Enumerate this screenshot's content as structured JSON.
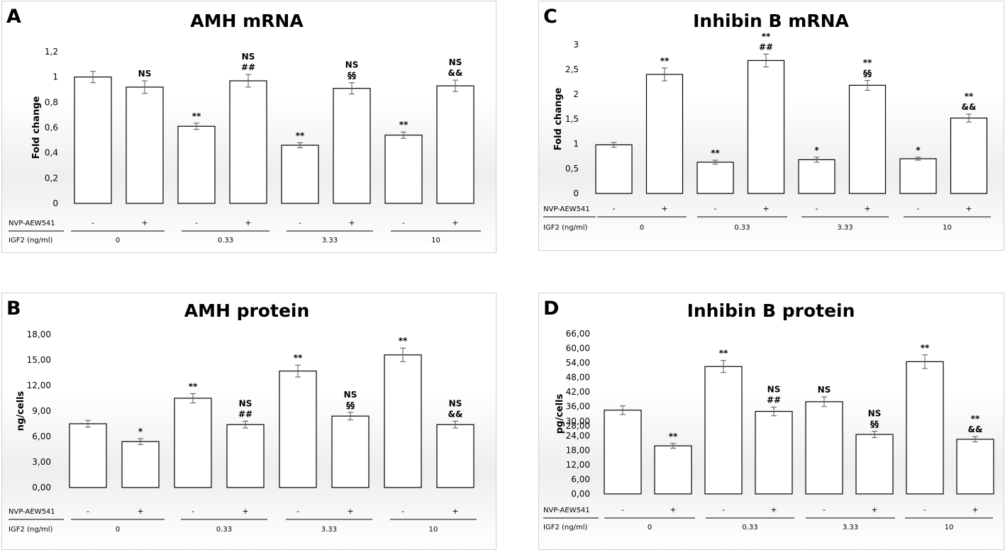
{
  "chart_data": [
    {
      "panel": "A",
      "type": "bar",
      "title": "AMH mRNA",
      "ylabel": "Fold change",
      "ylim": [
        0,
        1.2
      ],
      "yticks": [
        "0",
        "0,2",
        "0,4",
        "0,6",
        "0,8",
        "1",
        "1,2"
      ],
      "values": [
        1.0,
        0.92,
        0.61,
        0.97,
        0.46,
        0.91,
        0.54,
        0.93
      ],
      "errors": [
        0.045,
        0.05,
        0.025,
        0.05,
        0.02,
        0.045,
        0.025,
        0.045
      ],
      "labels": [
        [
          "",
          ""
        ],
        [
          "",
          "NS"
        ],
        [
          "",
          "**"
        ],
        [
          "NS",
          "##"
        ],
        [
          "",
          "**"
        ],
        [
          "NS",
          "§§"
        ],
        [
          "",
          "**"
        ],
        [
          "NS",
          "&&"
        ]
      ],
      "nvp_label": "NVP-AEW541",
      "igf_label": "IGF2 (ng/ml)",
      "nvp": [
        "-",
        "+",
        "-",
        "+",
        "-",
        "+",
        "-",
        "+"
      ],
      "igf_groups": [
        "0",
        "0.33",
        "3.33",
        "10"
      ]
    },
    {
      "panel": "B",
      "type": "bar",
      "title": "AMH protein",
      "ylabel": "ng/cells",
      "ylim": [
        0,
        18
      ],
      "yticks": [
        "0,00",
        "3,00",
        "6,00",
        "9,00",
        "12,00",
        "15,00",
        "18,00"
      ],
      "values": [
        7.5,
        5.4,
        10.5,
        7.4,
        13.7,
        8.4,
        15.6,
        7.4
      ],
      "errors": [
        0.4,
        0.35,
        0.55,
        0.4,
        0.7,
        0.45,
        0.8,
        0.4
      ],
      "labels": [
        [
          "",
          ""
        ],
        [
          "",
          "*"
        ],
        [
          "",
          "**"
        ],
        [
          "NS",
          "##"
        ],
        [
          "",
          "**"
        ],
        [
          "NS",
          "§§"
        ],
        [
          "",
          "**"
        ],
        [
          "NS",
          "&&"
        ]
      ],
      "nvp_label": "NVP-AEW541",
      "igf_label": "IGF2 (ng/ml)",
      "nvp": [
        "-",
        "+",
        "-",
        "+",
        "-",
        "+",
        "-",
        "+"
      ],
      "igf_groups": [
        "0",
        "0.33",
        "3.33",
        "10"
      ]
    },
    {
      "panel": "C",
      "type": "bar",
      "title": "Inhibin B mRNA",
      "ylabel": "Fold change",
      "ylim": [
        0,
        3
      ],
      "yticks": [
        "0",
        "0,5",
        "1",
        "1,5",
        "2",
        "2,5",
        "3"
      ],
      "values": [
        0.98,
        2.4,
        0.63,
        2.68,
        0.68,
        2.18,
        0.7,
        1.52
      ],
      "errors": [
        0.05,
        0.13,
        0.04,
        0.13,
        0.05,
        0.1,
        0.03,
        0.08
      ],
      "labels": [
        [
          "",
          ""
        ],
        [
          "",
          "**"
        ],
        [
          "",
          "**"
        ],
        [
          "**",
          "##"
        ],
        [
          "",
          "*"
        ],
        [
          "**",
          "§§"
        ],
        [
          "",
          "*"
        ],
        [
          "**",
          "&&"
        ]
      ],
      "nvp_label": "NVP-AEW541",
      "igf_label": "IGF2 (ng/ml)",
      "nvp": [
        "-",
        "+",
        "-",
        "+",
        "-",
        "+",
        "-",
        "+"
      ],
      "igf_groups": [
        "0",
        "0.33",
        "3.33",
        "10"
      ]
    },
    {
      "panel": "D",
      "type": "bar",
      "title": "Inhibin B protein",
      "ylabel": "pg/cells",
      "ylim": [
        0,
        66
      ],
      "yticks": [
        "0,00",
        "6,00",
        "12,00",
        "18,00",
        "24,00",
        "28,00",
        "30,00",
        "36,00",
        "42,00",
        "48,00",
        "54,00",
        "60,00",
        "66,00"
      ],
      "values": [
        34.5,
        19.8,
        52.5,
        34.0,
        38.0,
        24.5,
        54.5,
        22.5
      ],
      "errors": [
        1.8,
        1.0,
        2.5,
        1.8,
        2.0,
        1.3,
        2.8,
        1.1
      ],
      "labels": [
        [
          "",
          ""
        ],
        [
          "",
          "**"
        ],
        [
          "",
          "**"
        ],
        [
          "NS",
          "##"
        ],
        [
          "",
          "NS"
        ],
        [
          "NS",
          "§§"
        ],
        [
          "",
          "**"
        ],
        [
          "**",
          "&&"
        ]
      ],
      "nvp_label": "NVP-AEW541",
      "igf_label": "IGF2 (ng/ml)",
      "nvp": [
        "-",
        "+",
        "-",
        "+",
        "-",
        "+",
        "-",
        "+"
      ],
      "igf_groups": [
        "0",
        "0.33",
        "3.33",
        "10"
      ]
    }
  ]
}
